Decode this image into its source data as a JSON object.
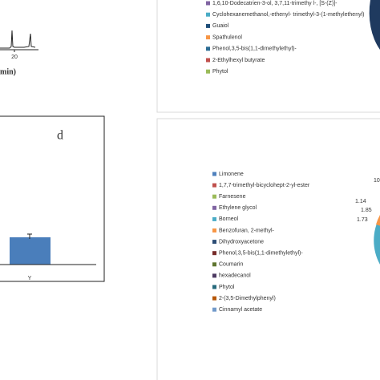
{
  "chromatogram": {
    "x_tick": "20",
    "x_label": "min)"
  },
  "legend_top": {
    "items": [
      {
        "label": "1,6,10-Dodecatrien-3-ol, 3,7,11-trimethy l-, [S-(Z)]-",
        "color": "#8064a2"
      },
      {
        "label": "Cyclohexanemethanol,-ethenyl- trimethyl-3-(1-methylethenyl)",
        "color": "#4bacc6"
      },
      {
        "label": "Guaiol",
        "color": "#1f4e79"
      },
      {
        "label": "Spathulenol",
        "color": "#f79646"
      },
      {
        "label": "Phenol,3,5-bis(1,1-dimethylethyl)-",
        "color": "#2c6c94"
      },
      {
        "label": "2-Ethylhexyl butyrate",
        "color": "#c0504d"
      },
      {
        "label": "Phytol",
        "color": "#9bbb59"
      }
    ]
  },
  "panel_d": {
    "letter": "d",
    "bar_label": "Y",
    "bar_color": "#4a7ebb"
  },
  "legend_bottom": {
    "items": [
      {
        "label": "Limonene",
        "color": "#4f81bd"
      },
      {
        "label": "1,7,7-trimethyl-bicyclohept-2-yl-ester",
        "color": "#c0504d"
      },
      {
        "label": "Farnesene",
        "color": "#9bbb59"
      },
      {
        "label": "Ethylene glycol",
        "color": "#8064a2"
      },
      {
        "label": "Borneol",
        "color": "#4bacc6"
      },
      {
        "label": "Benzofuran, 2-methyl-",
        "color": "#f79646"
      },
      {
        "label": "Dihydroxyacetone",
        "color": "#2c4d75"
      },
      {
        "label": "Phenol,3,5-bis(1,1-dimethylethyl)-",
        "color": "#772c2a"
      },
      {
        "label": "Coumarin",
        "color": "#5f7530"
      },
      {
        "label": "hexadecanol",
        "color": "#4d3b62"
      },
      {
        "label": "Phytol",
        "color": "#276a7c"
      },
      {
        "label": "2-(3,5-Dimethylphenyl)",
        "color": "#b65708"
      },
      {
        "label": "Cinnamyl acetate",
        "color": "#729aca"
      }
    ]
  },
  "pie_labels": [
    "10",
    "1.14",
    "1.85",
    "1.73"
  ]
}
